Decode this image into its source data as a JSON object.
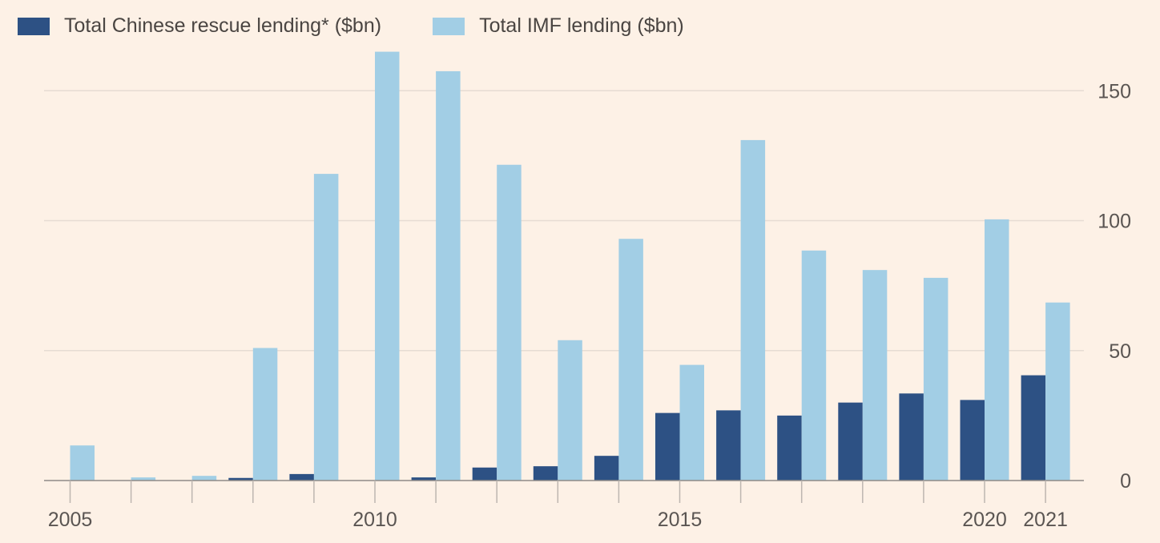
{
  "chart_data": {
    "type": "bar",
    "x": [
      2005,
      2006,
      2007,
      2008,
      2009,
      2010,
      2011,
      2012,
      2013,
      2014,
      2015,
      2016,
      2017,
      2018,
      2019,
      2020,
      2021
    ],
    "x_tick_labels": [
      "2005",
      "2010",
      "2015",
      "2020",
      "2021"
    ],
    "x_tick_values": [
      2005,
      2010,
      2015,
      2020,
      2021
    ],
    "series": [
      {
        "name": "Total Chinese rescue lending* ($bn)",
        "color": "#2d5184",
        "values": [
          0,
          0,
          0,
          1,
          2.5,
          0,
          1.2,
          5,
          5.5,
          9.5,
          26,
          27,
          25,
          30,
          33.5,
          31,
          40.5
        ]
      },
      {
        "name": "Total IMF lending ($bn)",
        "color": "#a2cee5",
        "values": [
          13.5,
          1.2,
          1.8,
          51,
          118,
          165,
          157.5,
          121.5,
          54,
          93,
          44.5,
          131,
          88.5,
          81,
          78,
          100.5,
          68.5
        ]
      }
    ],
    "y_ticks": [
      0,
      50,
      100,
      150
    ],
    "y_tick_labels": [
      "0",
      "50",
      "100",
      "150"
    ],
    "ylim": [
      0,
      165
    ],
    "y_axis_side": "right",
    "grid": true,
    "legend_position": "top-left"
  }
}
